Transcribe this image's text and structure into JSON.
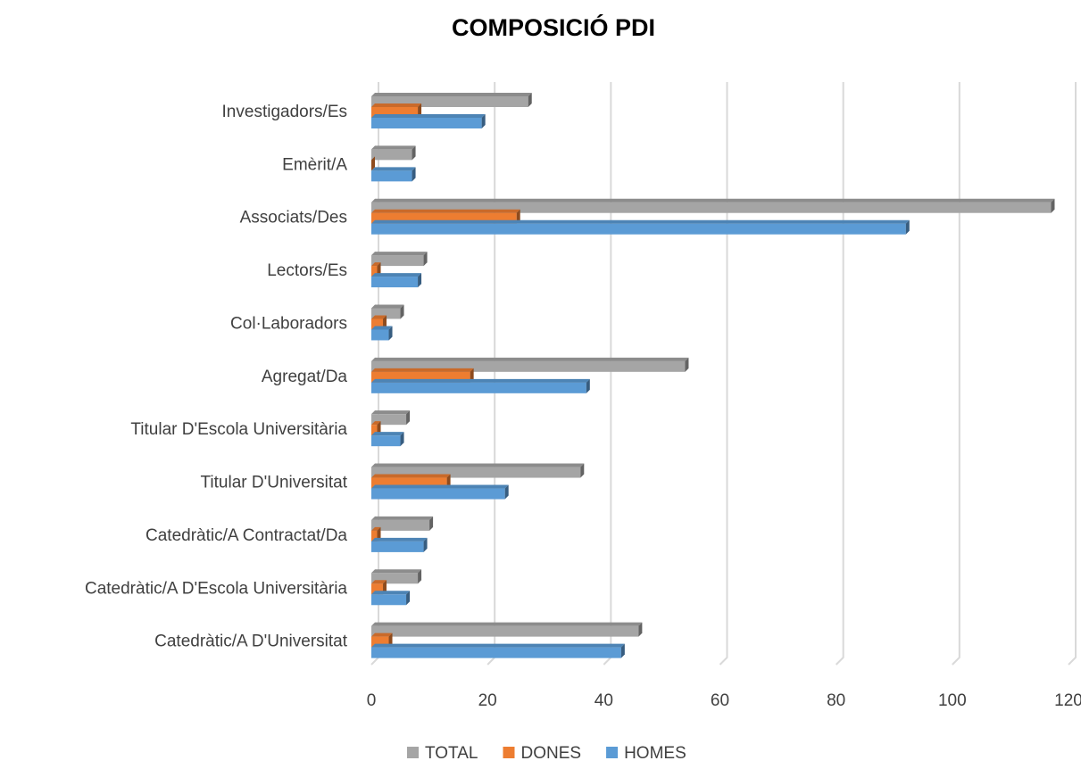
{
  "chart_data": {
    "type": "bar",
    "orientation": "horizontal",
    "title": "COMPOSICIÓ PDI",
    "categories": [
      "Investigadors/Es",
      "Emèrit/A",
      "Associats/Des",
      "Lectors/Es",
      "Col·Laboradors",
      "Agregat/Da",
      "Titular D'Escola Universitària",
      "Titular D'Universitat",
      "Catedràtic/A Contractat/Da",
      "Catedràtic/A D'Escola Universitària",
      "Catedràtic/A D'Universitat"
    ],
    "series": [
      {
        "name": "TOTAL",
        "color": "#a5a5a5",
        "values": [
          27,
          7,
          117,
          9,
          5,
          54,
          6,
          36,
          10,
          8,
          46
        ]
      },
      {
        "name": "DONES",
        "color": "#ed7d31",
        "values": [
          8,
          0,
          25,
          1,
          2,
          17,
          1,
          13,
          1,
          2,
          3
        ]
      },
      {
        "name": "HOMES",
        "color": "#5b9bd5",
        "values": [
          19,
          7,
          92,
          8,
          3,
          37,
          5,
          23,
          9,
          6,
          43
        ]
      }
    ],
    "xlim": [
      0,
      120
    ],
    "xticks": [
      0,
      20,
      40,
      60,
      80,
      100,
      120
    ],
    "grid": true,
    "legend": "bottom"
  }
}
